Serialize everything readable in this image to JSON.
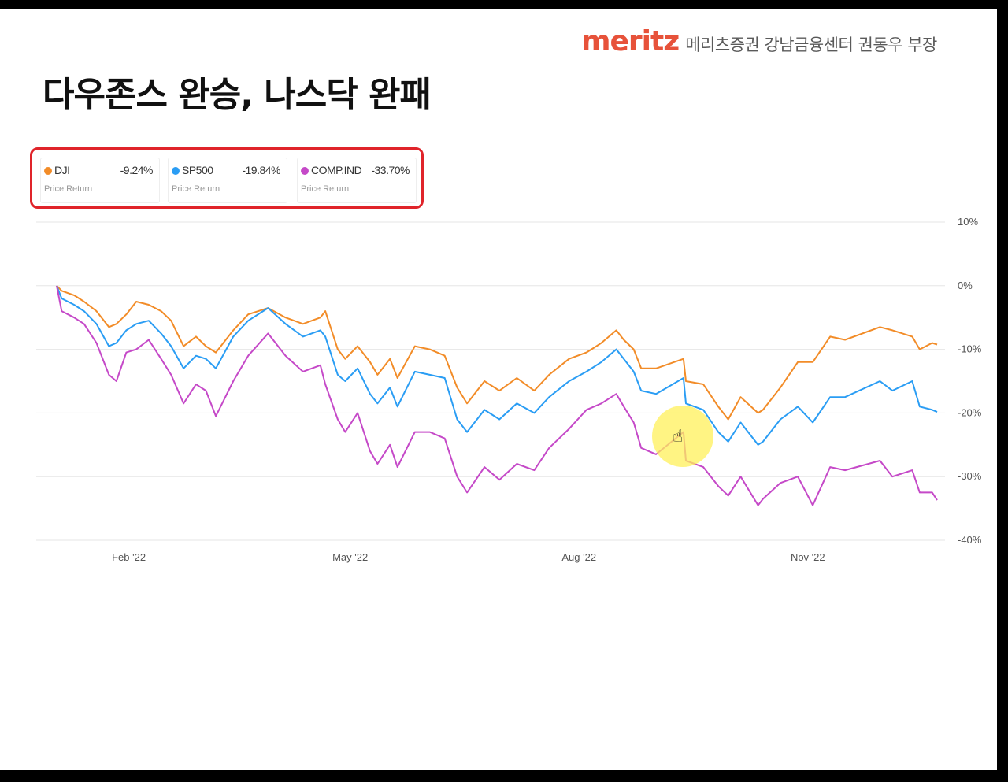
{
  "brand": {
    "logo": "meritz",
    "text": "메리츠증권 강남금융센터 권동우 부장"
  },
  "slide_title": "다우존스 완승, 나스닥 완패",
  "legend": [
    {
      "symbol": "DJI",
      "value": "-9.24%",
      "sub": "Price Return",
      "color": "#f28c28"
    },
    {
      "symbol": "SP500",
      "value": "-19.84%",
      "sub": "Price Return",
      "color": "#2a9df4"
    },
    {
      "symbol": "COMP.IND",
      "value": "-33.70%",
      "sub": "Price Return",
      "color": "#c549c8"
    }
  ],
  "cursor_icon": "hand-cursor-icon",
  "chart_data": {
    "type": "line",
    "title": "",
    "xlabel": "",
    "ylabel": "",
    "ylim": [
      -40,
      10
    ],
    "yticks": [
      10,
      0,
      -10,
      -20,
      -30,
      -40
    ],
    "ytick_labels": [
      "10%",
      "0%",
      "-10%",
      "-20%",
      "-30%",
      "-40%"
    ],
    "xlim": [
      "2022-01-03",
      "2022-12-23"
    ],
    "xticks": [
      "2022-02-01",
      "2022-05-01",
      "2022-08-01",
      "2022-11-01"
    ],
    "xtick_labels": [
      "Feb '22",
      "May '22",
      "Aug '22",
      "Nov '22"
    ],
    "grid": true,
    "legend_position": "top-left",
    "series": [
      {
        "name": "DJI",
        "color": "#f28c28",
        "points": [
          [
            "2022-01-03",
            0
          ],
          [
            "2022-01-05",
            -0.8
          ],
          [
            "2022-01-10",
            -1.5
          ],
          [
            "2022-01-14",
            -2.5
          ],
          [
            "2022-01-19",
            -4
          ],
          [
            "2022-01-24",
            -6.5
          ],
          [
            "2022-01-27",
            -6
          ],
          [
            "2022-01-31",
            -4.5
          ],
          [
            "2022-02-04",
            -2.5
          ],
          [
            "2022-02-09",
            -3
          ],
          [
            "2022-02-14",
            -4
          ],
          [
            "2022-02-18",
            -5.5
          ],
          [
            "2022-02-23",
            -9.5
          ],
          [
            "2022-02-28",
            -8
          ],
          [
            "2022-03-04",
            -9.5
          ],
          [
            "2022-03-08",
            -10.5
          ],
          [
            "2022-03-15",
            -7
          ],
          [
            "2022-03-21",
            -4.5
          ],
          [
            "2022-03-29",
            -3.5
          ],
          [
            "2022-04-05",
            -5
          ],
          [
            "2022-04-12",
            -6
          ],
          [
            "2022-04-19",
            -5
          ],
          [
            "2022-04-21",
            -4
          ],
          [
            "2022-04-26",
            -10
          ],
          [
            "2022-04-29",
            -11.5
          ],
          [
            "2022-05-04",
            -9.5
          ],
          [
            "2022-05-09",
            -12
          ],
          [
            "2022-05-12",
            -14
          ],
          [
            "2022-05-17",
            -11.5
          ],
          [
            "2022-05-20",
            -14.5
          ],
          [
            "2022-05-27",
            -9.5
          ],
          [
            "2022-06-02",
            -10
          ],
          [
            "2022-06-08",
            -11
          ],
          [
            "2022-06-13",
            -16
          ],
          [
            "2022-06-17",
            -18.5
          ],
          [
            "2022-06-24",
            -15
          ],
          [
            "2022-06-30",
            -16.5
          ],
          [
            "2022-07-07",
            -14.5
          ],
          [
            "2022-07-14",
            -16.5
          ],
          [
            "2022-07-20",
            -14
          ],
          [
            "2022-07-28",
            -11.5
          ],
          [
            "2022-08-04",
            -10.5
          ],
          [
            "2022-08-10",
            -9
          ],
          [
            "2022-08-16",
            -7
          ],
          [
            "2022-08-19",
            -8.5
          ],
          [
            "2022-08-23",
            -10
          ],
          [
            "2022-08-26",
            -13
          ],
          [
            "2022-09-01",
            -13
          ],
          [
            "2022-09-12",
            -11.5
          ],
          [
            "2022-09-13",
            -15
          ],
          [
            "2022-09-20",
            -15.5
          ],
          [
            "2022-09-26",
            -19
          ],
          [
            "2022-09-30",
            -21
          ],
          [
            "2022-10-05",
            -17.5
          ],
          [
            "2022-10-12",
            -20
          ],
          [
            "2022-10-14",
            -19.5
          ],
          [
            "2022-10-21",
            -16
          ],
          [
            "2022-10-28",
            -12
          ],
          [
            "2022-11-03",
            -12
          ],
          [
            "2022-11-10",
            -8
          ],
          [
            "2022-11-16",
            -8.5
          ],
          [
            "2022-11-30",
            -6.5
          ],
          [
            "2022-12-05",
            -7
          ],
          [
            "2022-12-13",
            -8
          ],
          [
            "2022-12-16",
            -10
          ],
          [
            "2022-12-21",
            -9
          ],
          [
            "2022-12-23",
            -9.24
          ]
        ]
      },
      {
        "name": "SP500",
        "color": "#2a9df4",
        "points": [
          [
            "2022-01-03",
            0
          ],
          [
            "2022-01-05",
            -2
          ],
          [
            "2022-01-10",
            -3
          ],
          [
            "2022-01-14",
            -4
          ],
          [
            "2022-01-19",
            -6
          ],
          [
            "2022-01-24",
            -9.5
          ],
          [
            "2022-01-27",
            -9
          ],
          [
            "2022-01-31",
            -7
          ],
          [
            "2022-02-04",
            -6
          ],
          [
            "2022-02-09",
            -5.5
          ],
          [
            "2022-02-14",
            -7.5
          ],
          [
            "2022-02-18",
            -9.5
          ],
          [
            "2022-02-23",
            -13
          ],
          [
            "2022-02-28",
            -11
          ],
          [
            "2022-03-04",
            -11.5
          ],
          [
            "2022-03-08",
            -13
          ],
          [
            "2022-03-15",
            -8
          ],
          [
            "2022-03-21",
            -5.5
          ],
          [
            "2022-03-29",
            -3.5
          ],
          [
            "2022-04-05",
            -6
          ],
          [
            "2022-04-12",
            -8
          ],
          [
            "2022-04-19",
            -7
          ],
          [
            "2022-04-21",
            -8
          ],
          [
            "2022-04-26",
            -14
          ],
          [
            "2022-04-29",
            -15
          ],
          [
            "2022-05-04",
            -13
          ],
          [
            "2022-05-09",
            -17
          ],
          [
            "2022-05-12",
            -18.5
          ],
          [
            "2022-05-17",
            -16
          ],
          [
            "2022-05-20",
            -19
          ],
          [
            "2022-05-27",
            -13.5
          ],
          [
            "2022-06-02",
            -14
          ],
          [
            "2022-06-08",
            -14.5
          ],
          [
            "2022-06-13",
            -21
          ],
          [
            "2022-06-17",
            -23
          ],
          [
            "2022-06-24",
            -19.5
          ],
          [
            "2022-06-30",
            -21
          ],
          [
            "2022-07-07",
            -18.5
          ],
          [
            "2022-07-14",
            -20
          ],
          [
            "2022-07-20",
            -17.5
          ],
          [
            "2022-07-28",
            -15
          ],
          [
            "2022-08-04",
            -13.5
          ],
          [
            "2022-08-10",
            -12
          ],
          [
            "2022-08-16",
            -10
          ],
          [
            "2022-08-19",
            -11.5
          ],
          [
            "2022-08-23",
            -13.5
          ],
          [
            "2022-08-26",
            -16.5
          ],
          [
            "2022-09-01",
            -17
          ],
          [
            "2022-09-12",
            -14.5
          ],
          [
            "2022-09-13",
            -18.5
          ],
          [
            "2022-09-20",
            -19.5
          ],
          [
            "2022-09-26",
            -23
          ],
          [
            "2022-09-30",
            -24.5
          ],
          [
            "2022-10-05",
            -21.5
          ],
          [
            "2022-10-12",
            -25
          ],
          [
            "2022-10-14",
            -24.5
          ],
          [
            "2022-10-21",
            -21
          ],
          [
            "2022-10-28",
            -19
          ],
          [
            "2022-11-03",
            -21.5
          ],
          [
            "2022-11-10",
            -17.5
          ],
          [
            "2022-11-16",
            -17.5
          ],
          [
            "2022-11-30",
            -15
          ],
          [
            "2022-12-05",
            -16.5
          ],
          [
            "2022-12-13",
            -15
          ],
          [
            "2022-12-16",
            -19
          ],
          [
            "2022-12-21",
            -19.5
          ],
          [
            "2022-12-23",
            -19.84
          ]
        ]
      },
      {
        "name": "COMP.IND",
        "color": "#c549c8",
        "points": [
          [
            "2022-01-03",
            0
          ],
          [
            "2022-01-05",
            -4
          ],
          [
            "2022-01-10",
            -5
          ],
          [
            "2022-01-14",
            -6
          ],
          [
            "2022-01-19",
            -9
          ],
          [
            "2022-01-24",
            -14
          ],
          [
            "2022-01-27",
            -15
          ],
          [
            "2022-01-31",
            -10.5
          ],
          [
            "2022-02-04",
            -10
          ],
          [
            "2022-02-09",
            -8.5
          ],
          [
            "2022-02-14",
            -11.5
          ],
          [
            "2022-02-18",
            -14
          ],
          [
            "2022-02-23",
            -18.5
          ],
          [
            "2022-02-28",
            -15.5
          ],
          [
            "2022-03-04",
            -16.5
          ],
          [
            "2022-03-08",
            -20.5
          ],
          [
            "2022-03-15",
            -15
          ],
          [
            "2022-03-21",
            -11
          ],
          [
            "2022-03-29",
            -7.5
          ],
          [
            "2022-04-05",
            -11
          ],
          [
            "2022-04-12",
            -13.5
          ],
          [
            "2022-04-19",
            -12.5
          ],
          [
            "2022-04-21",
            -15.5
          ],
          [
            "2022-04-26",
            -21
          ],
          [
            "2022-04-29",
            -23
          ],
          [
            "2022-05-04",
            -20
          ],
          [
            "2022-05-09",
            -26
          ],
          [
            "2022-05-12",
            -28
          ],
          [
            "2022-05-17",
            -25
          ],
          [
            "2022-05-20",
            -28.5
          ],
          [
            "2022-05-27",
            -23
          ],
          [
            "2022-06-02",
            -23
          ],
          [
            "2022-06-08",
            -24
          ],
          [
            "2022-06-13",
            -30
          ],
          [
            "2022-06-17",
            -32.5
          ],
          [
            "2022-06-24",
            -28.5
          ],
          [
            "2022-06-30",
            -30.5
          ],
          [
            "2022-07-07",
            -28
          ],
          [
            "2022-07-14",
            -29
          ],
          [
            "2022-07-20",
            -25.5
          ],
          [
            "2022-07-28",
            -22.5
          ],
          [
            "2022-08-04",
            -19.5
          ],
          [
            "2022-08-10",
            -18.5
          ],
          [
            "2022-08-16",
            -17
          ],
          [
            "2022-08-19",
            -19
          ],
          [
            "2022-08-23",
            -21.5
          ],
          [
            "2022-08-26",
            -25.5
          ],
          [
            "2022-09-01",
            -26.5
          ],
          [
            "2022-09-12",
            -23
          ],
          [
            "2022-09-13",
            -27.5
          ],
          [
            "2022-09-20",
            -28.5
          ],
          [
            "2022-09-26",
            -31.5
          ],
          [
            "2022-09-30",
            -33
          ],
          [
            "2022-10-05",
            -30
          ],
          [
            "2022-10-12",
            -34.5
          ],
          [
            "2022-10-14",
            -33.5
          ],
          [
            "2022-10-21",
            -31
          ],
          [
            "2022-10-28",
            -30
          ],
          [
            "2022-11-03",
            -34.5
          ],
          [
            "2022-11-10",
            -28.5
          ],
          [
            "2022-11-16",
            -29
          ],
          [
            "2022-11-30",
            -27.5
          ],
          [
            "2022-12-05",
            -30
          ],
          [
            "2022-12-13",
            -29
          ],
          [
            "2022-12-16",
            -32.5
          ],
          [
            "2022-12-21",
            -32.5
          ],
          [
            "2022-12-23",
            -33.7
          ]
        ]
      }
    ]
  }
}
